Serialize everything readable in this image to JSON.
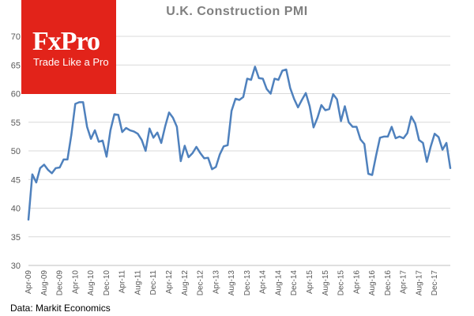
{
  "colors": {
    "line": "#4f81bd",
    "gridline": "#d9d9d9",
    "axis_text": "#595959",
    "title": "#7f7f7f",
    "logo_bg": "#e2231a"
  },
  "logo": {
    "word": "FxPro",
    "tagline": "Trade Like a Pro"
  },
  "source_note": "Data: Markit Economics",
  "chart_data": {
    "type": "line",
    "title": "U.K. Construction  PMI",
    "xlabel": "",
    "ylabel": "",
    "ylim": [
      30,
      70
    ],
    "yticks": [
      30,
      35,
      40,
      45,
      50,
      55,
      60,
      65,
      70
    ],
    "grid": "horizontal",
    "x_tick_labels": [
      "Apr-09",
      "Aug-09",
      "Dec-09",
      "Apr-10",
      "Aug-10",
      "Dec-10",
      "Apr-11",
      "Aug-11",
      "Dec-11",
      "Apr-12",
      "Aug-12",
      "Dec-12",
      "Apr-13",
      "Aug-13",
      "Dec-13",
      "Apr-14",
      "Aug-14",
      "Dec-14",
      "Apr-15",
      "Aug-15",
      "Dec-15",
      "Apr-16",
      "Aug-16",
      "Dec-16",
      "Apr-17",
      "Aug-17",
      "Dec-17"
    ],
    "x_start": "Apr-09",
    "x_end": "Feb-18",
    "series": [
      {
        "values": [
          38,
          45.9,
          44.5,
          47,
          47.6,
          46.7,
          46.1,
          47,
          47.1,
          48.5,
          48.5,
          52.9,
          58.2,
          58.5,
          58.5,
          54.2,
          52.1,
          53.6,
          51.6,
          51.8,
          49,
          53.6,
          56.4,
          56.3,
          53.3,
          54,
          53.6,
          53.4,
          53,
          51.9,
          50,
          53.9,
          52.3,
          53.2,
          51.4,
          54.3,
          56.7,
          55.8,
          54.2,
          48.2,
          50.9,
          48.9,
          49.6,
          50.7,
          49.6,
          48.7,
          48.8,
          46.8,
          47.2,
          49.4,
          50.8,
          51,
          57,
          59.1,
          58.9,
          59.4,
          62.6,
          62.4,
          64.7,
          62.7,
          62.6,
          60.8,
          60,
          62.6,
          62.4,
          64,
          64.2,
          61,
          59.1,
          57.6,
          58.9,
          60.1,
          57.8,
          54.1,
          55.8,
          58,
          57.1,
          57.3,
          59.9,
          59,
          55.2,
          57.8,
          55,
          54.2,
          54.2,
          52,
          51.2,
          46,
          45.8,
          49.2,
          52.3,
          52.5,
          52.5,
          54.2,
          52.2,
          52.5,
          52.2,
          53.1,
          56,
          54.8,
          51.9,
          51.4,
          48.1,
          50.8,
          53,
          52.4,
          50.2,
          51.4,
          47
        ]
      }
    ]
  }
}
